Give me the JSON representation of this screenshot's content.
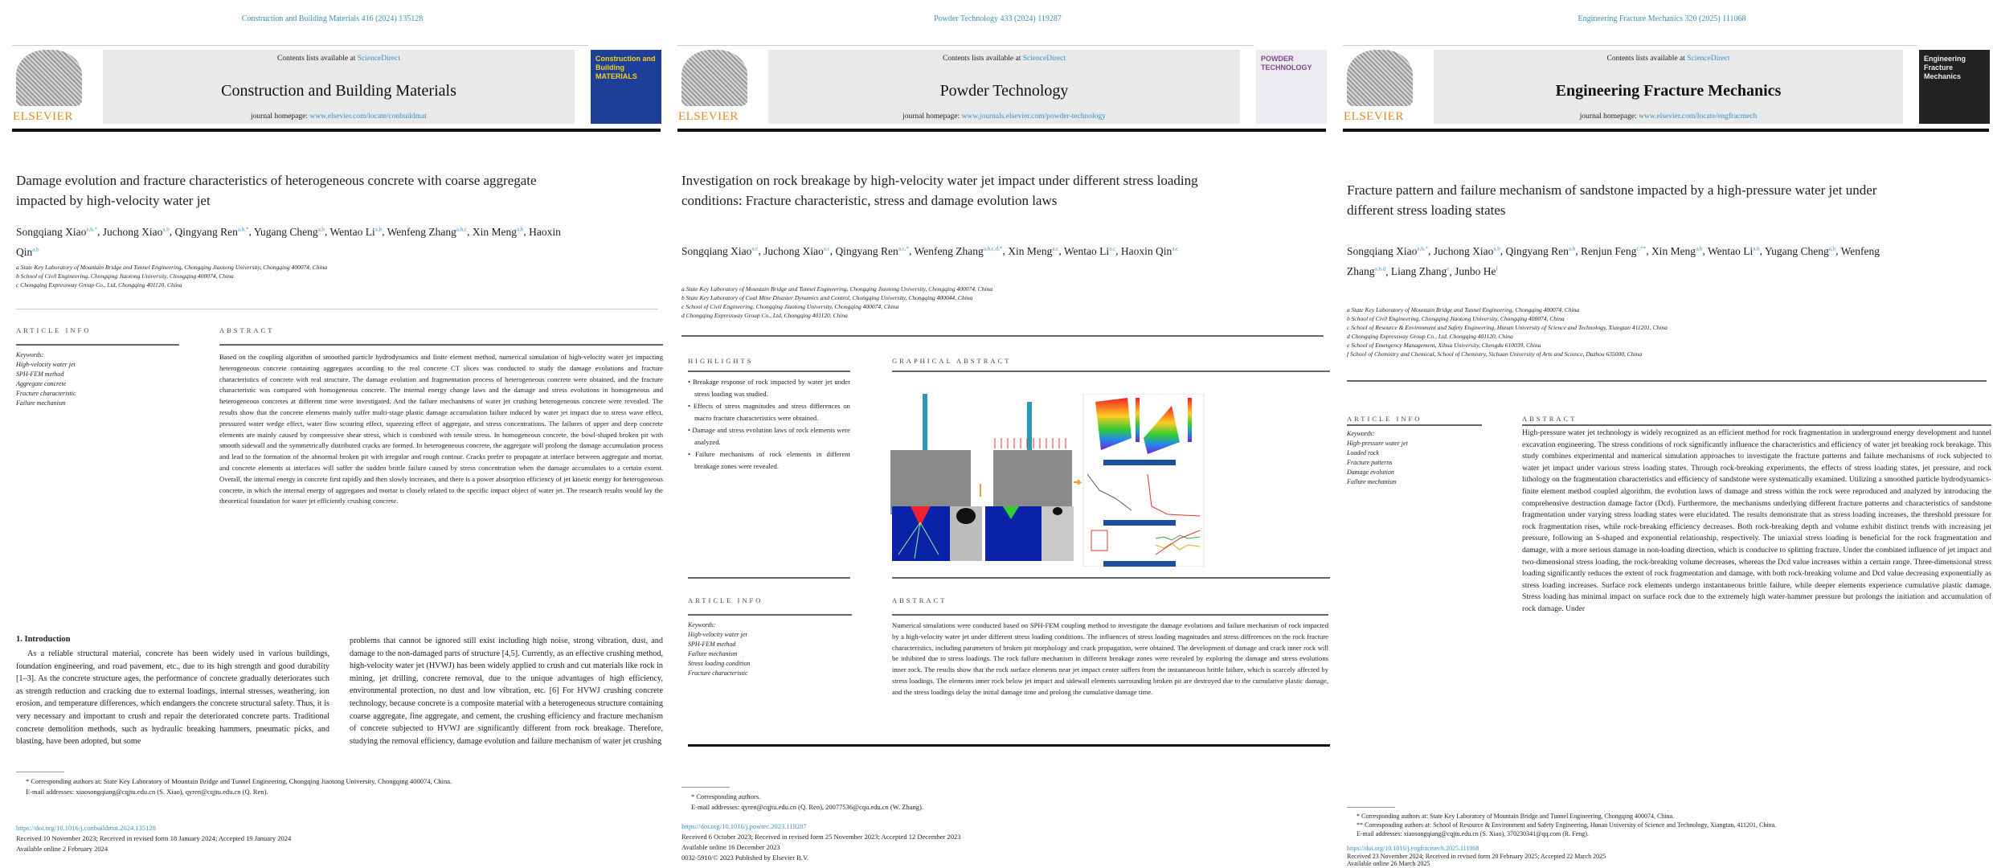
{
  "papers": [
    {
      "running_head": "Construction and Building Materials 416 (2024) 135128",
      "contents_prefix": "Contents lists available at ",
      "contents_link": "ScienceDirect",
      "journal": "Construction and Building Materials",
      "homepage_prefix": "journal homepage: ",
      "homepage_url": "www.elsevier.com/locate/conbuildmat",
      "publisher": "ELSEVIER",
      "cover_title": "Construction and Building MATERIALS",
      "title": "Damage evolution and fracture characteristics of heterogeneous concrete with coarse aggregate impacted by high-velocity water jet",
      "authors": [
        [
          "Songqiang Xiao",
          "a,b,*"
        ],
        [
          "Juchong Xiao",
          "a,b"
        ],
        [
          "Qingyang Ren",
          "a,b,*"
        ],
        [
          "Yugang Cheng",
          "a,b"
        ],
        [
          "Wentao Li",
          "a,b"
        ],
        [
          "Wenfeng Zhang",
          "a,b,c"
        ],
        [
          "Xin Meng",
          "a,b"
        ],
        [
          "Haoxin Qin",
          "a,b"
        ]
      ],
      "affiliations": [
        "a State Key Laboratory of Mountain Bridge and Tunnel Engineering, Chongqing Jiaotong University, Chongqing 400074, China",
        "b School of Civil Engineering, Chongqing Jiaotong University, Chongqing 400074, China",
        "c Chongqing Expressway Group Co., Ltd, Chongqing 401120, China"
      ],
      "article_info": "ARTICLE INFO",
      "abstract_head": "ABSTRACT",
      "keywords_head": "Keywords:",
      "keywords": [
        "High-velocity water jet",
        "SPH-FEM method",
        "Aggregate concrete",
        "Fracture characteristic",
        "Failure mechanism"
      ],
      "abstract": "Based on the coupling algorithm of smoothed particle hydrodynamics and finite element method, numerical simulation of high-velocity water jet impacting heterogeneous concrete containing aggregates according to the real concrete CT slices was conducted to study the damage evolutions and fracture characteristics of concrete with real structure. The damage evolution and fragmentation process of heterogeneous concrete were obtained, and the fracture characteristic was compared with homogeneous concrete. The internal energy change laws and the damage and stress evolutions in homogeneous and heterogeneous concretes at different time were investigated. And the failure mechanisms of water jet crushing heterogeneous concrete were revealed. The results show that the concrete elements mainly suffer multi-stage plastic damage accumulation failure induced by water jet impact due to stress wave effect, pressured water wedge effect, water flow scouring effect, squeezing effect of aggregate, and stress concentrations. The failures of upper and deep concrete elements are mainly caused by compressive shear stress, which is combined with tensile stress. In homogeneous concrete, the bowl-shaped broken pit with smooth sidewall and the symmetrically distributed cracks are formed. In heterogeneous concrete, the aggregate will prolong the damage accumulation process and lead to the formation of the abnormal broken pit with irregular and rough contour. Cracks prefer to propagate at interface between aggregate and mortar, and concrete elements at interfaces will suffer the sudden brittle failure caused by stress concentration when the damage accumulates to a certain extent. Overall, the internal energy in concrete first rapidly and then slowly increases, and there is a power absorption efficiency of jet kinetic energy for heterogeneous concrete, in which the internal energy of aggregates and mortar is closely related to the specific impact object of water jet. The research results would lay the theoretical foundation for water jet efficiently crushing concrete.",
      "intro_head": "1. Introduction",
      "intro_col1": "As a reliable structural material, concrete has been widely used in various buildings, foundation engineering, and road pavement, etc., due to its high strength and good durability [1–3]. As the concrete structure ages, the performance of concrete gradually deteriorates such as strength reduction and cracking due to external loadings, internal stresses, weathering, ion erosion, and temperature differences, which endangers the concrete structural safety. Thus, it is very necessary and important to crush and repair the deteriorated concrete parts. Traditional concrete demolition methods, such as hydraulic breaking hammers, pneumatic picks, and blasting, have been adopted, but some",
      "intro_col2": "problems that cannot be ignored still exist including high noise, strong vibration, dust, and damage to the non-damaged parts of structure [4,5]. Currently, as an effective crushing method, high-velocity water jet (HVWJ) has been widely applied to crush and cut materials like rock in mining, jet drilling, concrete removal, due to the unique advantages of high efficiency, environmental protection, no dust and low vibration, etc. [6] For HVWJ crushing concrete technology, because concrete is a composite material with a heterogeneous structure containing coarse aggregate, fine aggregate, and cement, the crushing efficiency and fracture mechanism of concrete subjected to HVWJ are significantly different from rock breakage. Therefore, studying the removal efficiency, damage evolution and failure mechanism of water jet crushing",
      "footnotes": [
        "* Corresponding authors at: State Key Laboratory of Mountain Bridge and Tunnel Engineering, Chongqing Jiaotong University, Chongqing 400074, China.",
        "E-mail addresses: xiaosongqiang@cqjtu.edu.cn (S. Xiao), qyren@cqjtu.edu.cn (Q. Ren)."
      ],
      "doi": "https://doi.org/10.1016/j.conbuildmat.2024.135128",
      "dates": [
        "Received 10 November 2023; Received in revised form 18 January 2024; Accepted 19 January 2024",
        "Available online 2 February 2024"
      ]
    },
    {
      "running_head": "Powder Technology 433 (2024) 119287",
      "contents_prefix": "Contents lists available at ",
      "contents_link": "ScienceDirect",
      "journal": "Powder Technology",
      "homepage_prefix": "journal homepage: ",
      "homepage_url": "www.journals.elsevier.com/powder-technology",
      "publisher": "ELSEVIER",
      "cover_title": "POWDER TECHNOLOGY",
      "title": "Investigation on rock breakage by high-velocity water jet impact under different stress loading conditions: Fracture characteristic, stress and damage evolution laws",
      "authors": [
        [
          "Songqiang Xiao",
          "a,c"
        ],
        [
          "Juchong Xiao",
          "a,c"
        ],
        [
          "Qingyang Ren",
          "a,c,*"
        ],
        [
          "Wenfeng Zhang",
          "a,b,c,d,*"
        ],
        [
          "Xin Meng",
          "a,c"
        ],
        [
          "Wentao Li",
          "a,c"
        ],
        [
          "Haoxin Qin",
          "a,c"
        ]
      ],
      "affiliations": [
        "a State Key Laboratory of Mountain Bridge and Tunnel Engineering, Chongqing Jiaotong University, Chongqing 400074, China",
        "b State Key Laboratory of Coal Mine Disaster Dynamics and Control, Chongqing University, Chongqing 400044, China",
        "c School of Civil Engineering, Chongqing Jiaotong University, Chongqing 400074, China",
        "d Chongqing Expressway Group Co., Ltd, Chongqing 401120, China"
      ],
      "highlights_head": "HIGHLIGHTS",
      "graphical_head": "GRAPHICAL ABSTRACT",
      "highlights": [
        "Breakage response of rock impacted by water jet under stress loading was studied.",
        "Effects of stress magnitudes and stress differences on macro fracture characteristics were obtained.",
        "Damage and stress evolution laws of rock elements were analyzed.",
        "Failure mechanisms of rock elements in different breakage zones were revealed."
      ],
      "article_info": "ARTICLE INFO",
      "abstract_head": "ABSTRACT",
      "keywords_head": "Keywords:",
      "keywords": [
        "High-velocity water jet",
        "SPH-FEM method",
        "Failure mechanism",
        "Stress loading condition",
        "Fracture characteristic"
      ],
      "abstract": "Numerical simulations were conducted based on SPH-FEM coupling method to investigate the damage evolutions and failure mechanism of rock impacted by a high-velocity water jet under different stress loading conditions. The influences of stress loading magnitudes and stress differences on the rock fracture characteristics, including parameters of broken pit morphology and crack propagation, were obtained. The development of damage and crack inner rock will be inhibited due to stress loadings. The rock failure mechanism in different breakage zones were revealed by exploring the damage and stress evolutions inner rock. The results show that the rock surface elements near jet impact center suffers from the instantaneous brittle failure, which is scarcely affected by stress loadings. The elements inner rock below jet impact and sidewall elements surrounding broken pit are destroyed due to the cumulative plastic damage, and the stress loadings delay the initial damage time and prolong the cumulative damage time.",
      "footnotes": [
        "* Corresponding authors.",
        "E-mail addresses: qyren@cqjtu.edu.cn (Q. Ren), 20077536@cqu.edu.cn (W. Zhang)."
      ],
      "doi": "https://doi.org/10.1016/j.powtec.2023.119287",
      "dates": [
        "Received 6 October 2023; Received in revised form 25 November 2023; Accepted 12 December 2023",
        "Available online 16 December 2023",
        "0032-5910/© 2023 Published by Elsevier B.V."
      ]
    },
    {
      "running_head": "Engineering Fracture Mechanics 320 (2025) 111068",
      "contents_prefix": "Contents lists available at ",
      "contents_link": "ScienceDirect",
      "journal": "Engineering Fracture Mechanics",
      "homepage_prefix": "journal homepage: ",
      "homepage_url": "www.elsevier.com/locate/engfracmech",
      "publisher": "ELSEVIER",
      "cover_title": "Engineering Fracture Mechanics",
      "title": "Fracture pattern and failure mechanism of sandstone impacted by a high-pressure water jet under different stress loading states",
      "authors": [
        [
          "Songqiang Xiao",
          "a,b,*"
        ],
        [
          "Juchong Xiao",
          "a,b"
        ],
        [
          "Qingyang Ren",
          "a,b"
        ],
        [
          "Renjun Feng",
          "c,**"
        ],
        [
          "Xin Meng",
          "a,b"
        ],
        [
          "Wentao Li",
          "a,b"
        ],
        [
          "Yugang Cheng",
          "a,b"
        ],
        [
          "Wenfeng Zhang",
          "a,b,d"
        ],
        [
          "Liang Zhang",
          "e"
        ],
        [
          "Junbo He",
          "f"
        ]
      ],
      "affiliations": [
        "a State Key Laboratory of Mountain Bridge and Tunnel Engineering, Chongqing 400074, China",
        "b School of Civil Engineering, Chongqing Jiaotong University, Chongqing 400074, China",
        "c School of Resource & Environment and Safety Engineering, Hunan University of Science and Technology, Xiangtan 411201, China",
        "d Chongqing Expressway Group Co., Ltd, Chongqing 401120, China",
        "e School of Emergency Management, Xihua University, Chengdu 610039, China",
        "f School of Chemistry and Chemical, School of Chemistry, Sichuan University of Arts and Science, Dazhou 635000, China"
      ],
      "article_info": "ARTICLE INFO",
      "abstract_head": "ABSTRACT",
      "keywords_head": "Keywords:",
      "keywords": [
        "High-pressure water jet",
        "Loaded rock",
        "Fracture patterns",
        "Damage evolution",
        "Failure mechanism"
      ],
      "abstract": "High-pressure water jet technology is widely recognized as an efficient method for rock fragmentation in underground energy development and tunnel excavation engineering. The stress conditions of rock significantly influence the characteristics and efficiency of water jet breaking rock breakage. This study combines experimental and numerical simulation approaches to investigate the fracture patterns and failure mechanisms of rock subjected to water jet impact under various stress loading states. Through rock-breaking experiments, the effects of stress loading states, jet pressure, and rock lithology on the fragmentation characteristics and efficiency of sandstone were systematically examined. Utilizing a smoothed particle hydrodynamics-finite element method coupled algorithm, the evolution laws of damage and stress within the rock were reproduced and analyzed by introducing the comprehensive destruction damage factor (Dcd). Furthermore, the mechanisms underlying different fracture patterns and characteristics of sandstone fragmentation under varying stress loading states were elucidated. The results demonstrate that as stress loading increases, the threshold pressure for rock fragmentation rises, while rock-breaking efficiency decreases. Both rock-breaking depth and volume exhibit distinct trends with increasing jet pressure, following an S-shaped and exponential relationship, respectively. The uniaxial stress loading is beneficial for the rock fragmentation and damage, with a more serious damage in non-loading direction, which is conducive to splitting fracture. Under the combined influence of jet impact and two-dimensional stress loading, the rock-breaking volume decreases, whereas the Dcd value increases within a certain range. Three-dimensional stress loading significantly reduces the extent of rock fragmentation and damage, with both rock-breaking volume and Dcd value decreasing exponentially as stress loading increases. Surface rock elements undergo instantaneous brittle failure, while deeper elements experience cumulative plastic damage. Stress loading has minimal impact on surface rock due to the extremely high water-hammer pressure but prolongs the initiation and accumulation of rock damage. Under",
      "footnotes": [
        "* Corresponding authors at: State Key Laboratory of Mountain Bridge and Tunnel Engineering, Chongqing 400074, China.",
        "** Corresponding authors at: School of Resource & Environment and Safety Engineering, Hunan University of Science and Technology, Xiangtan, 411201, China.",
        "E-mail addresses: xiaosongqiang@cqjtu.edu.cn (S. Xiao), 370230341@qq.com (R. Feng)."
      ],
      "doi": "https://doi.org/10.1016/j.engfracmech.2025.111068",
      "dates": [
        "Received 23 November 2024; Received in revised form 20 February 2025; Accepted 22 March 2025",
        "Available online 26 March 2025"
      ]
    }
  ],
  "colors": {
    "link": "#3a8fc0",
    "elsevier": "#e08a22",
    "band": "#e9e9e9",
    "cover1": "#1d3f9a",
    "cover1_text": "#f2d21b"
  },
  "icons": [
    "elsevier-tree-logo",
    "journal-cover"
  ]
}
